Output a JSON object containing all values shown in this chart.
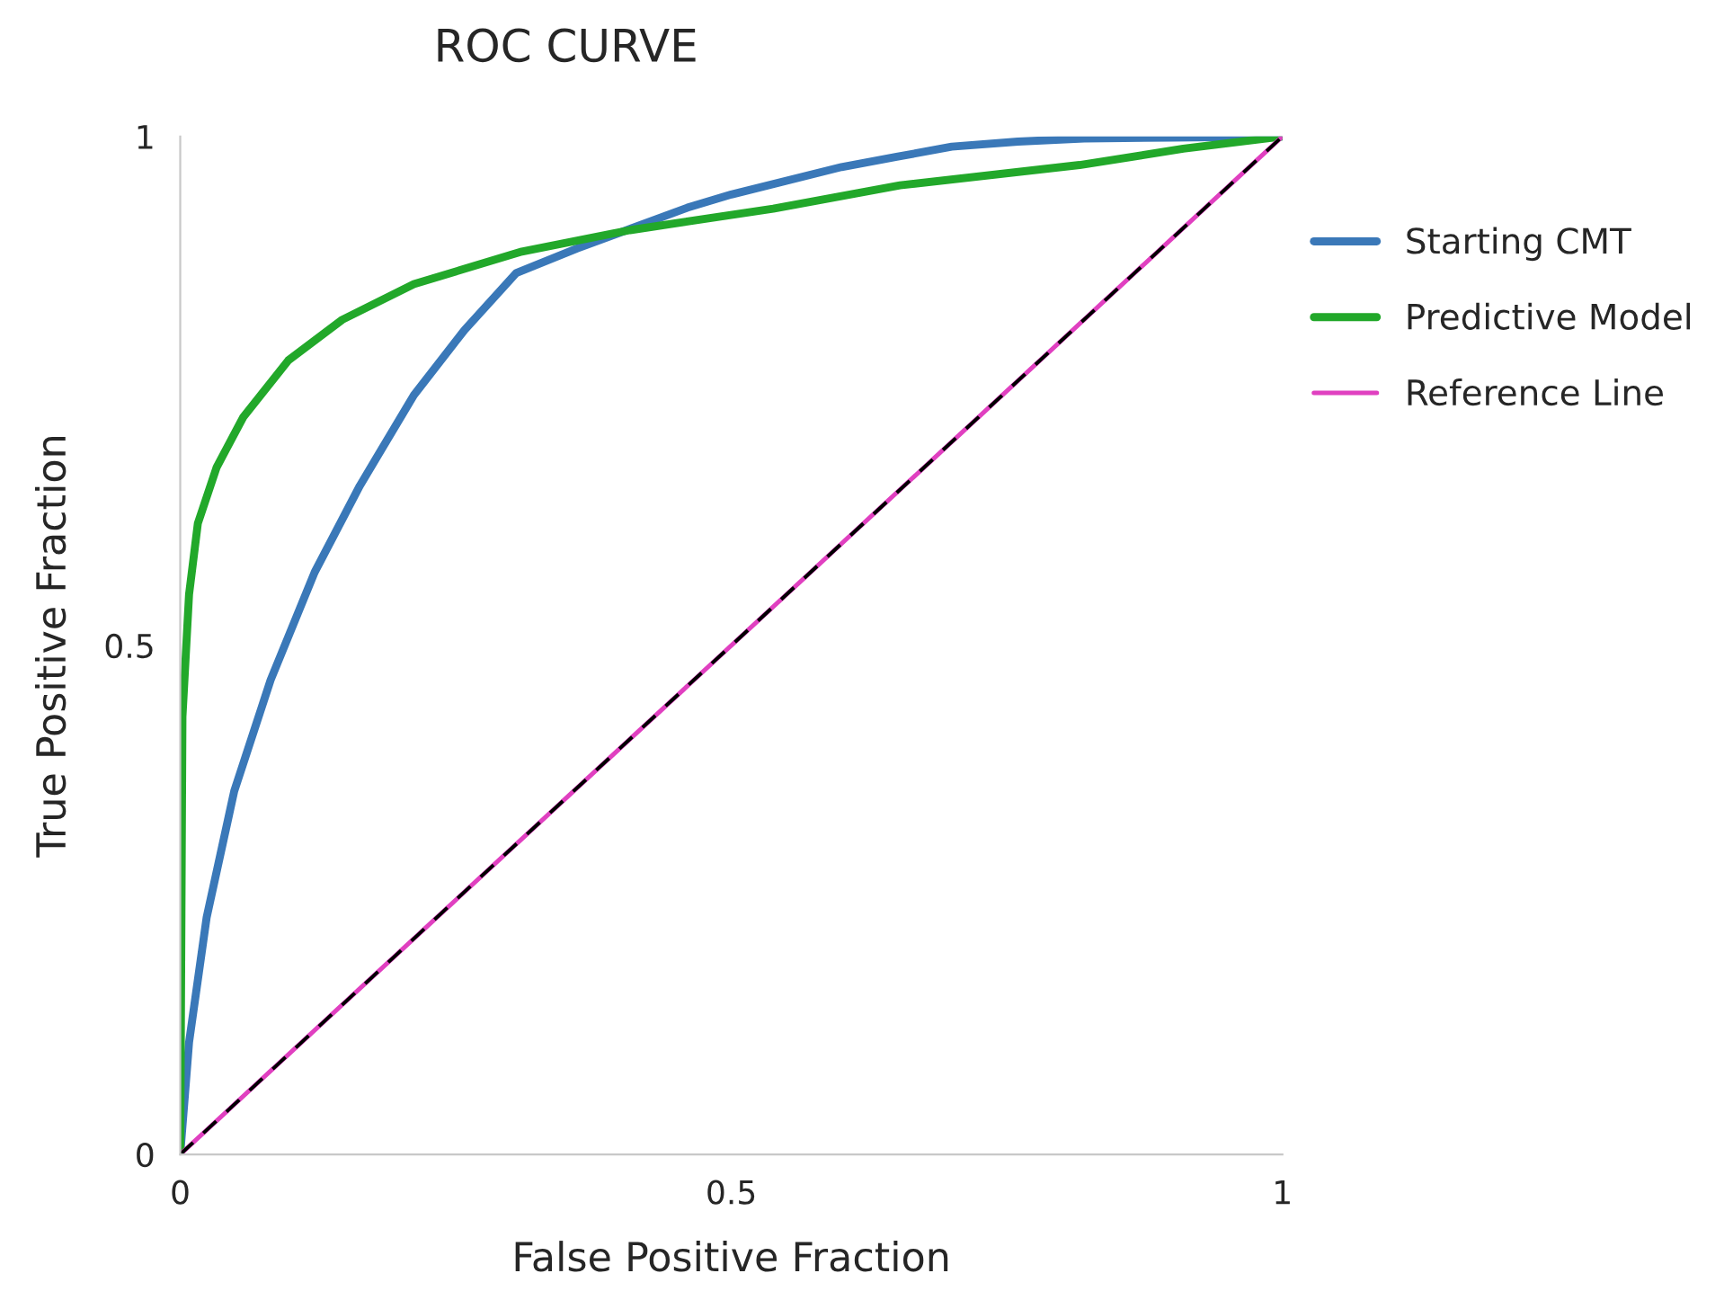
{
  "chart_data": {
    "type": "line",
    "title": "ROC CURVE",
    "xlabel": "False Positive Fraction",
    "ylabel": "True Positive Fraction",
    "xlim": [
      0,
      1
    ],
    "ylim": [
      0,
      1
    ],
    "xticks": [
      0,
      0.5,
      1
    ],
    "yticks": [
      0,
      0.5,
      1
    ],
    "grid": false,
    "legend": "right",
    "series": [
      {
        "name": "Starting CMT",
        "color": "#3a78b8",
        "x": [
          0,
          0.008,
          0.024,
          0.049,
          0.082,
          0.122,
          0.163,
          0.212,
          0.258,
          0.305,
          0.36,
          0.41,
          0.46,
          0.5,
          0.6,
          0.65,
          0.7,
          0.76,
          0.82,
          0.9,
          1
        ],
        "values": [
          0,
          0.11,
          0.233,
          0.357,
          0.466,
          0.572,
          0.657,
          0.746,
          0.81,
          0.866,
          0.89,
          0.91,
          0.93,
          0.943,
          0.97,
          0.98,
          0.99,
          0.995,
          0.998,
          0.999,
          1
        ]
      },
      {
        "name": "Predictive Model",
        "color": "#22a82a",
        "x": [
          0,
          0.002,
          0.008,
          0.016,
          0.033,
          0.057,
          0.098,
          0.147,
          0.212,
          0.31,
          0.408,
          0.538,
          0.653,
          0.816,
          0.91,
          1
        ],
        "values": [
          0,
          0.43,
          0.55,
          0.62,
          0.675,
          0.724,
          0.78,
          0.82,
          0.855,
          0.887,
          0.908,
          0.929,
          0.952,
          0.972,
          0.988,
          1
        ]
      },
      {
        "name": "Reference Line",
        "color": "#e040c0",
        "x": [
          0,
          1
        ],
        "values": [
          0,
          1
        ],
        "line_style": "solid"
      },
      {
        "color": "#000000",
        "x": [
          0,
          1
        ],
        "values": [
          0,
          1
        ],
        "line_style": "dashed"
      }
    ]
  }
}
